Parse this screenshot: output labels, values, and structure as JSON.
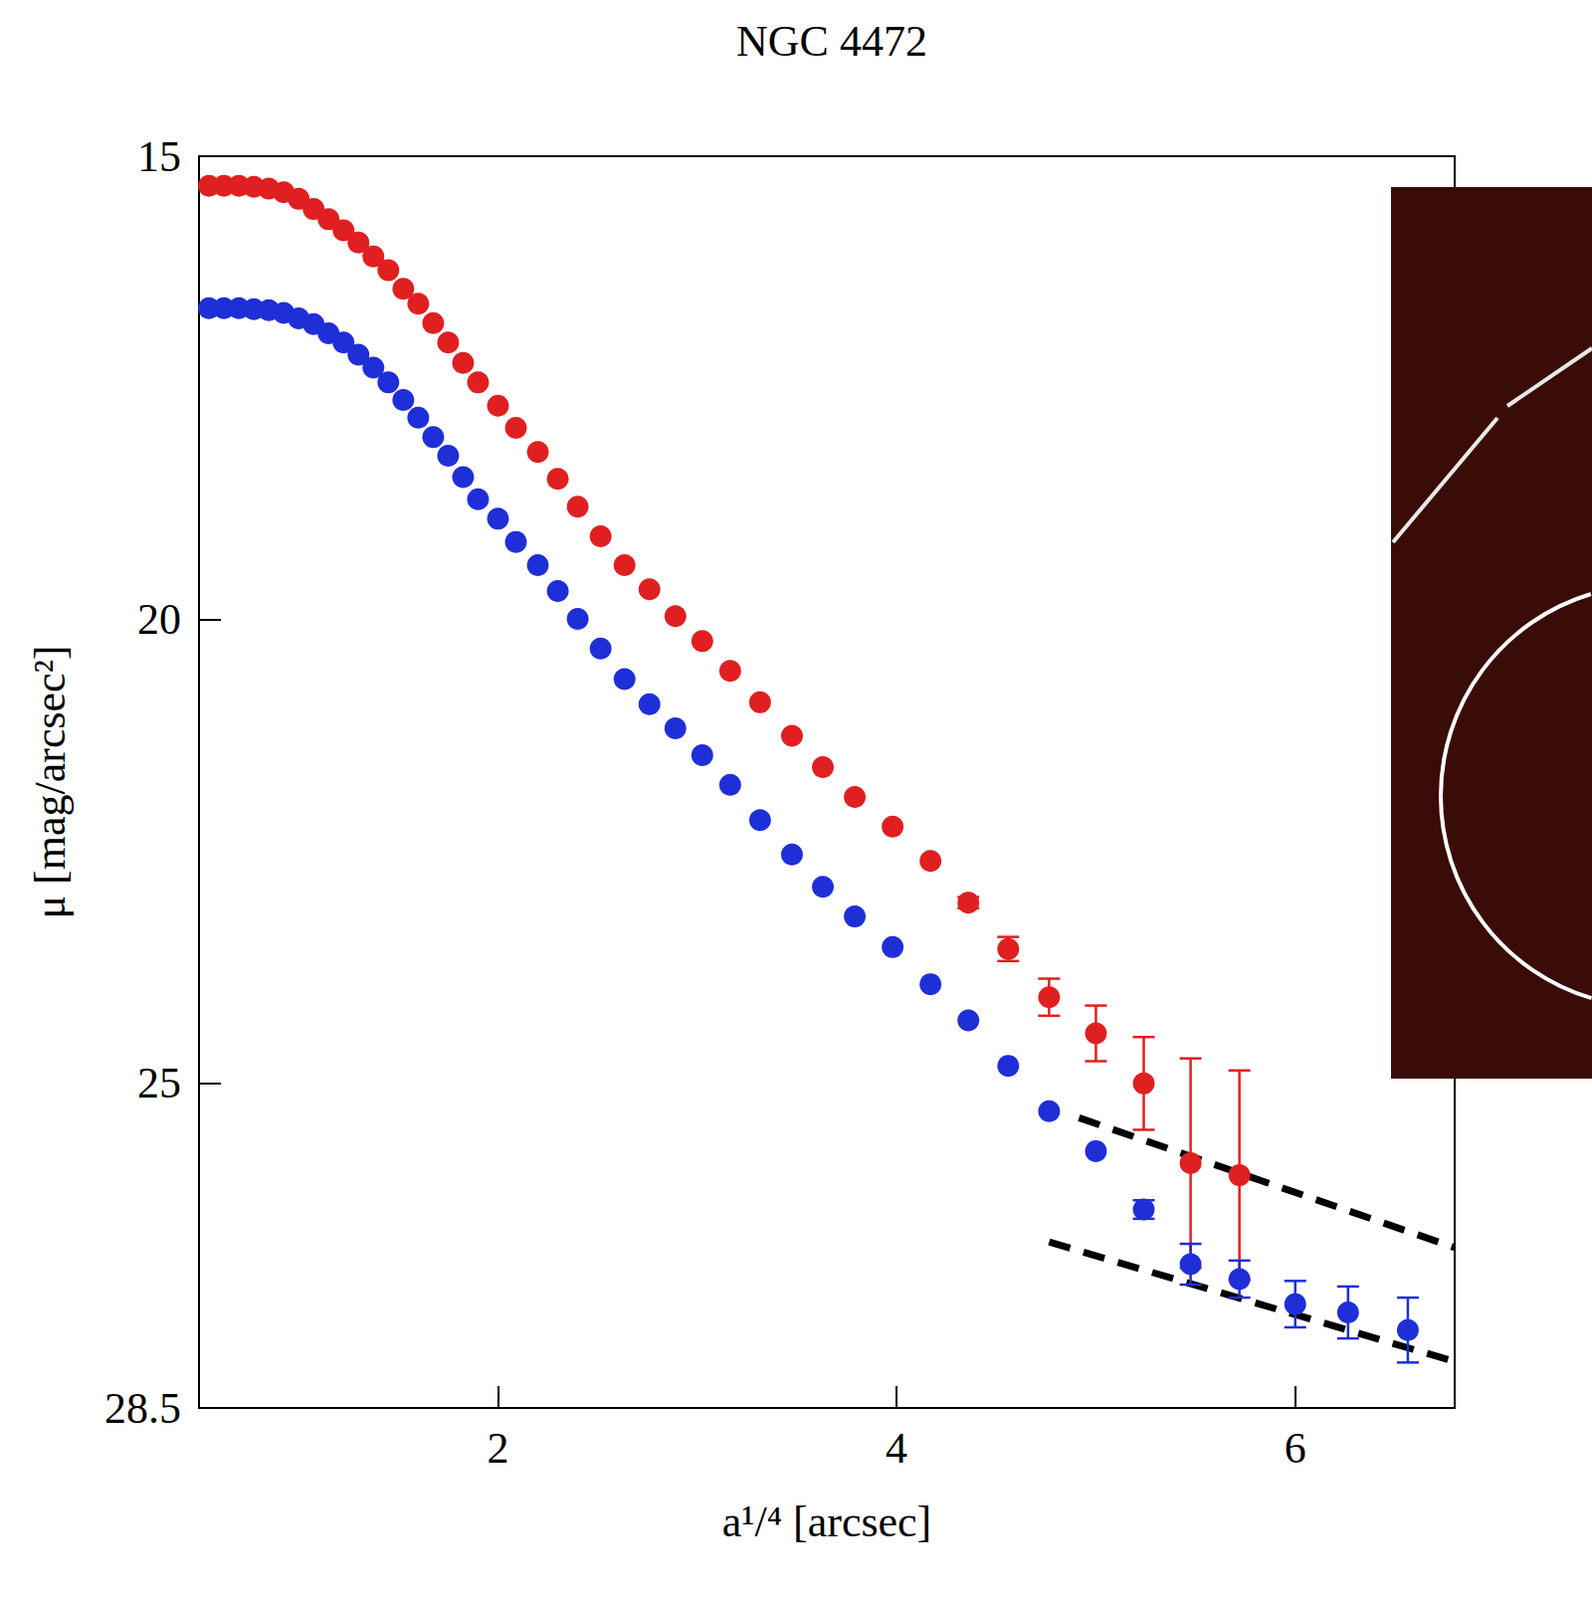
{
  "chart_data": {
    "type": "scatter",
    "title": "NGC 4472",
    "x_label": "a¹/⁴ [arcsec]",
    "y_label": "μ [mag/arcsec²]",
    "xlim": [
      0.5,
      6.8
    ],
    "xticks": [
      2,
      4,
      6
    ],
    "ylim": [
      28.5,
      15
    ],
    "yticks": [
      15,
      20,
      25
    ],
    "grid": false,
    "series": [
      {
        "color": "#e02020",
        "marker": "circle",
        "x": [
          0.55,
          0.625,
          0.7,
          0.775,
          0.85,
          0.925,
          1.0,
          1.075,
          1.15,
          1.225,
          1.3,
          1.375,
          1.45,
          1.525,
          1.6,
          1.675,
          1.75,
          1.825,
          1.9,
          2.0,
          2.09,
          2.2,
          2.3,
          2.4,
          2.515,
          2.635,
          2.76,
          2.89,
          3.025,
          3.165,
          3.315,
          3.475,
          3.63,
          3.79,
          3.98,
          4.17,
          4.36,
          4.56,
          4.765,
          5.0,
          5.24,
          5.475,
          5.72
        ],
        "values": [
          15.32,
          15.32,
          15.32,
          15.33,
          15.35,
          15.39,
          15.46,
          15.57,
          15.68,
          15.8,
          15.93,
          16.08,
          16.23,
          16.43,
          16.59,
          16.8,
          17.01,
          17.23,
          17.44,
          17.69,
          17.93,
          18.19,
          18.48,
          18.78,
          19.1,
          19.41,
          19.67,
          19.96,
          20.23,
          20.55,
          20.89,
          21.25,
          21.59,
          21.91,
          22.23,
          22.6,
          23.05,
          23.55,
          24.07,
          24.46,
          25.0,
          25.86,
          25.99
        ],
        "errors": [
          null,
          null,
          null,
          null,
          null,
          null,
          null,
          null,
          null,
          null,
          null,
          null,
          null,
          null,
          null,
          null,
          null,
          null,
          null,
          null,
          null,
          null,
          null,
          null,
          null,
          null,
          null,
          null,
          null,
          null,
          null,
          null,
          null,
          null,
          null,
          null,
          0.06,
          0.13,
          0.2,
          0.3,
          0.5,
          1.13,
          1.13
        ]
      },
      {
        "color": "#1f2fd8",
        "marker": "circle",
        "x": [
          0.55,
          0.625,
          0.7,
          0.775,
          0.85,
          0.925,
          1.0,
          1.075,
          1.15,
          1.225,
          1.3,
          1.375,
          1.45,
          1.525,
          1.6,
          1.675,
          1.75,
          1.825,
          1.9,
          2.0,
          2.09,
          2.2,
          2.3,
          2.4,
          2.515,
          2.635,
          2.76,
          2.89,
          3.025,
          3.165,
          3.315,
          3.475,
          3.63,
          3.79,
          3.98,
          4.17,
          4.36,
          4.56,
          4.765,
          5.0,
          5.24,
          5.475,
          5.72,
          6.0,
          6.265,
          6.565
        ],
        "values": [
          16.64,
          16.64,
          16.64,
          16.65,
          16.66,
          16.69,
          16.75,
          16.81,
          16.91,
          17.01,
          17.14,
          17.28,
          17.44,
          17.63,
          17.82,
          18.03,
          18.23,
          18.46,
          18.7,
          18.91,
          19.16,
          19.41,
          19.69,
          19.99,
          20.31,
          20.64,
          20.91,
          21.17,
          21.46,
          21.78,
          22.16,
          22.53,
          22.88,
          23.2,
          23.53,
          23.93,
          24.32,
          24.81,
          25.3,
          25.73,
          26.36,
          26.95,
          27.11,
          27.38,
          27.47,
          27.66
        ],
        "errors": [
          null,
          null,
          null,
          null,
          null,
          null,
          null,
          null,
          null,
          null,
          null,
          null,
          null,
          null,
          null,
          null,
          null,
          null,
          null,
          null,
          null,
          null,
          null,
          null,
          null,
          null,
          null,
          null,
          null,
          null,
          null,
          null,
          null,
          null,
          null,
          null,
          null,
          null,
          null,
          null,
          0.1,
          0.22,
          0.2,
          0.25,
          0.28,
          0.35
        ]
      }
    ],
    "lines": [
      {
        "x": [
          4.915,
          6.8
        ],
        "y": [
          25.37,
          26.77
        ],
        "line_style": "dashed",
        "color": "#000000"
      },
      {
        "x": [
          4.765,
          6.8
        ],
        "y": [
          26.71,
          28.0
        ],
        "line_style": "dashed",
        "color": "#000000"
      }
    ]
  }
}
